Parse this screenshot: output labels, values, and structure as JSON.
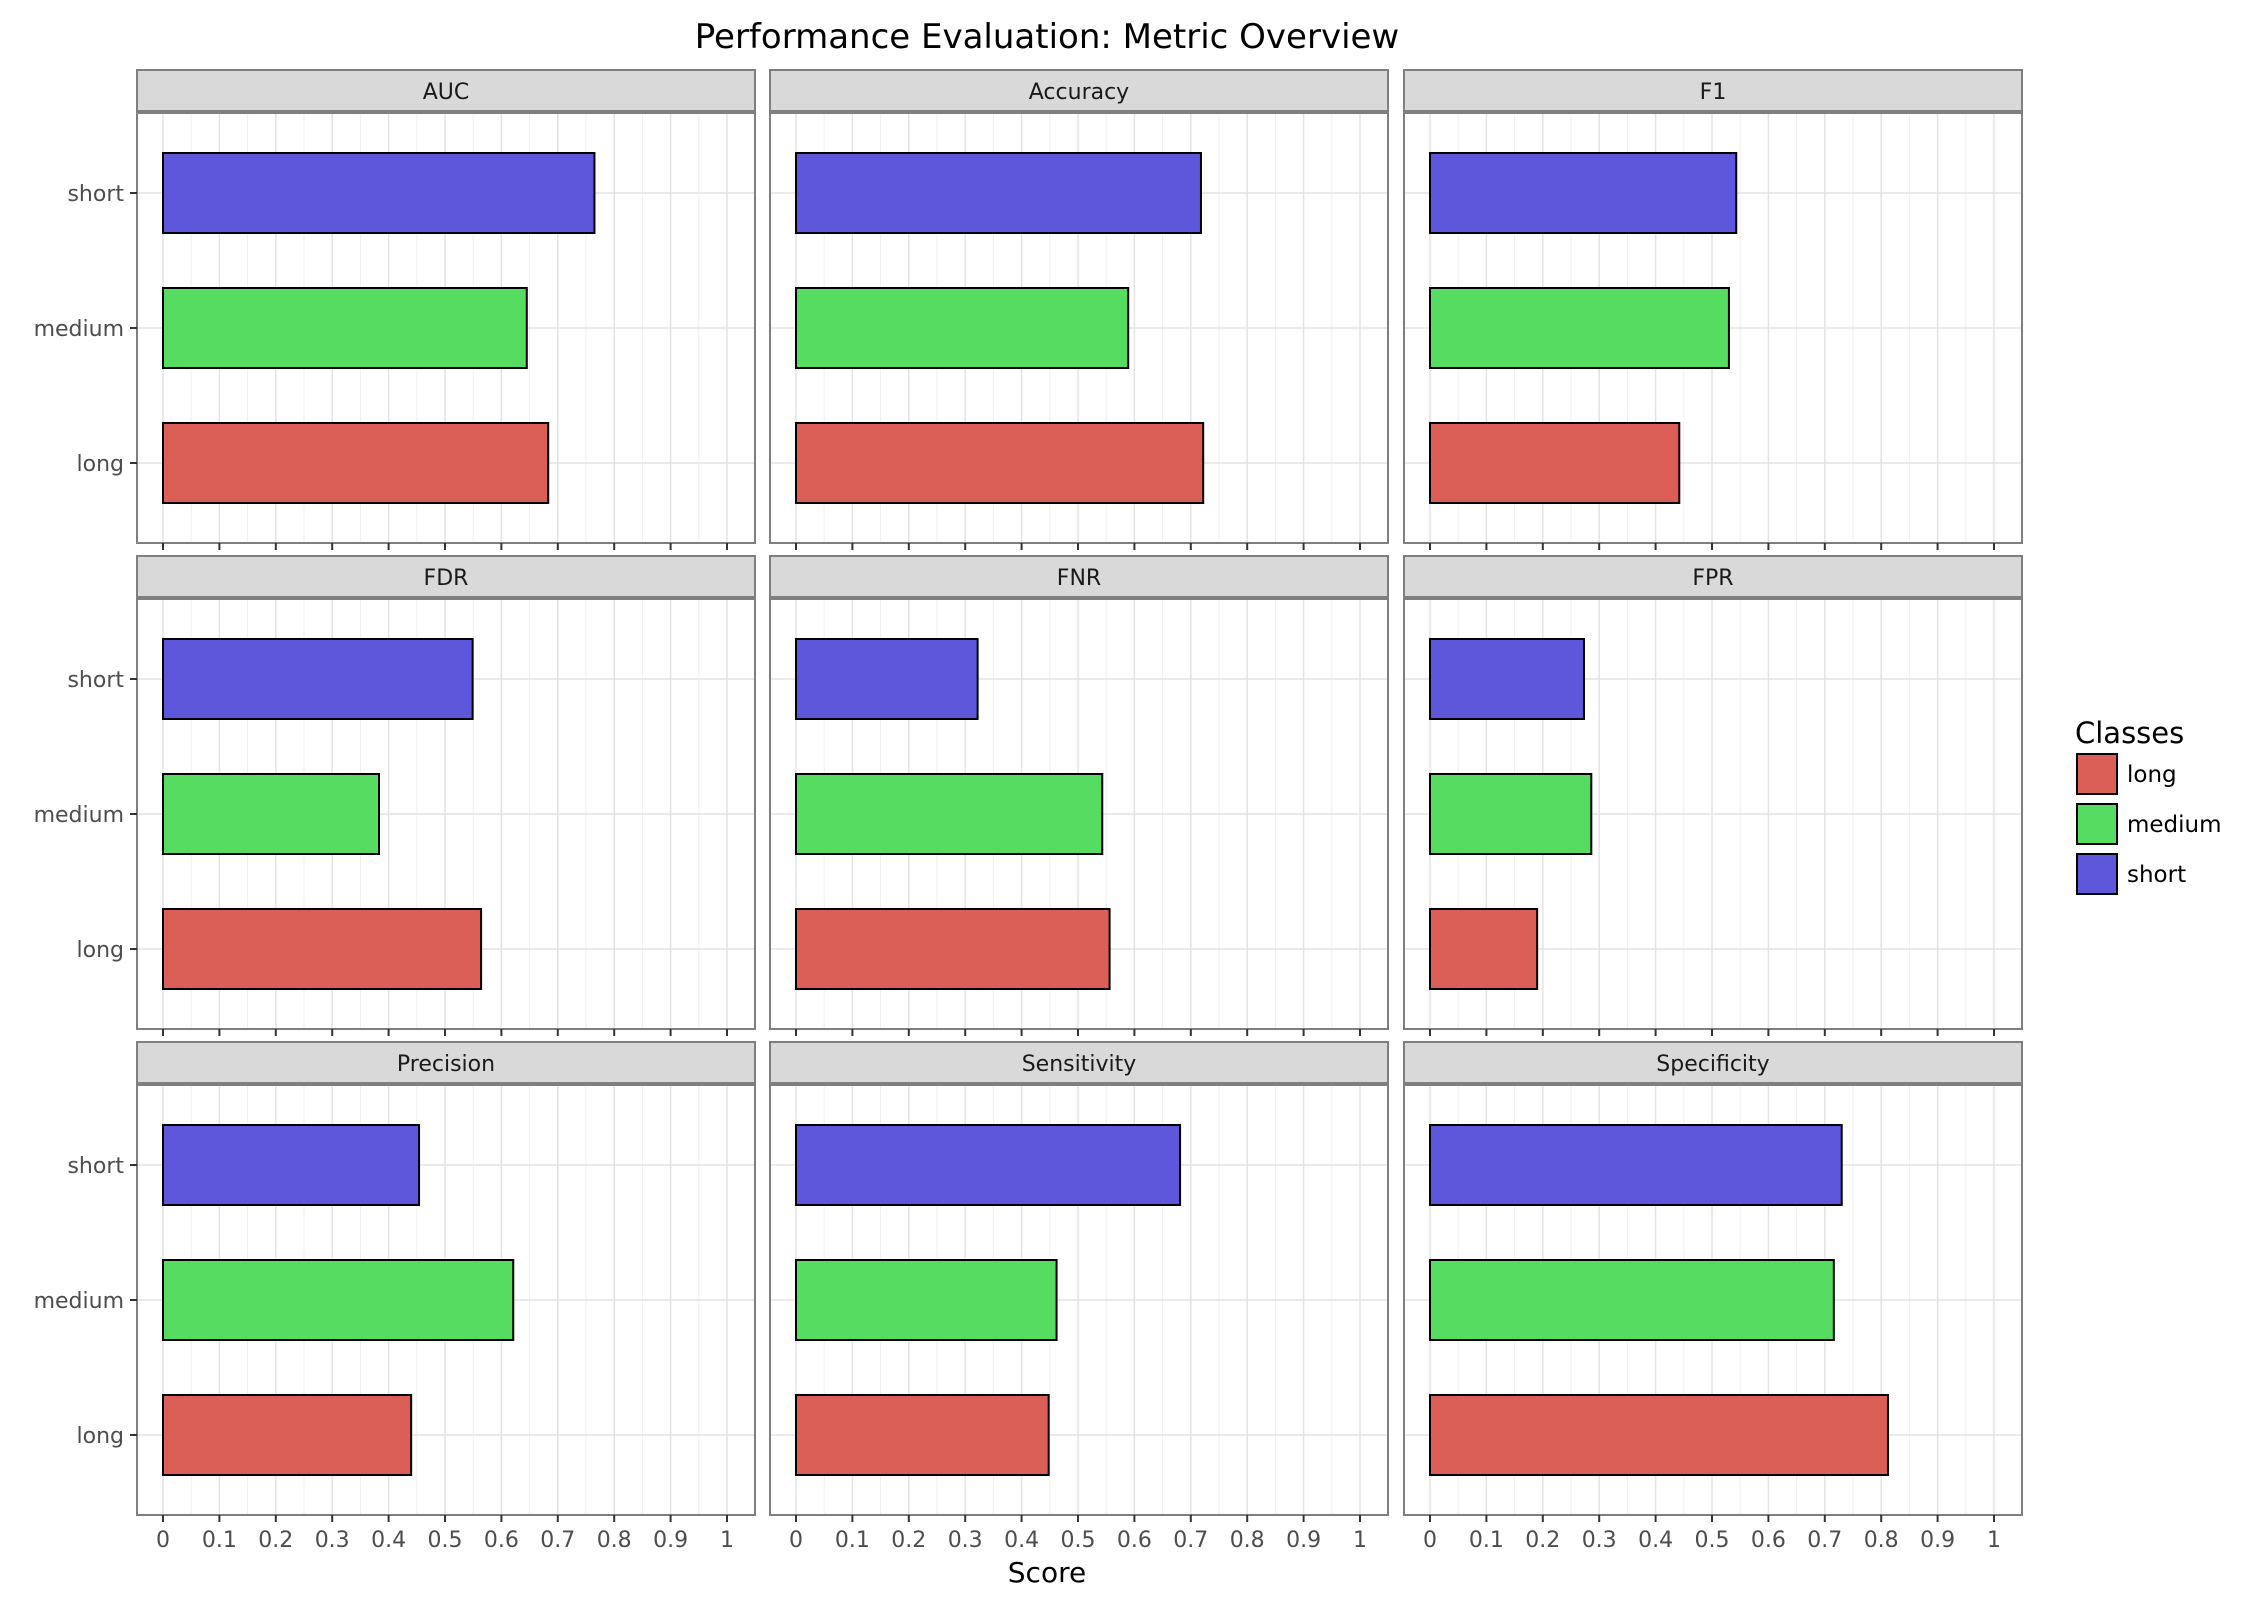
{
  "chart_data": {
    "type": "bar",
    "orientation": "horizontal",
    "title": "Performance Evaluation: Metric Overview",
    "xlabel": "Score",
    "ylabel": "",
    "xlim": [
      0,
      1
    ],
    "x_ticks": [
      "0",
      "0.1",
      "0.2",
      "0.3",
      "0.4",
      "0.5",
      "0.6",
      "0.7",
      "0.8",
      "0.9",
      "1"
    ],
    "categories": [
      "short",
      "medium",
      "long"
    ],
    "grid": true,
    "legend": {
      "title": "Classes",
      "position": "right",
      "entries": [
        "long",
        "medium",
        "short"
      ]
    },
    "colors": {
      "long": "#dc5f57",
      "medium": "#57dc62",
      "short": "#5e57dc"
    },
    "panels": [
      {
        "metric": "AUC",
        "values": {
          "short": 0.765,
          "medium": 0.645,
          "long": 0.683
        }
      },
      {
        "metric": "Accuracy",
        "values": {
          "short": 0.718,
          "medium": 0.589,
          "long": 0.722
        }
      },
      {
        "metric": "F1",
        "values": {
          "short": 0.543,
          "medium": 0.53,
          "long": 0.442
        }
      },
      {
        "metric": "FDR",
        "values": {
          "short": 0.549,
          "medium": 0.383,
          "long": 0.564
        }
      },
      {
        "metric": "FNR",
        "values": {
          "short": 0.322,
          "medium": 0.543,
          "long": 0.556
        }
      },
      {
        "metric": "FPR",
        "values": {
          "short": 0.273,
          "medium": 0.286,
          "long": 0.19
        }
      },
      {
        "metric": "Precision",
        "values": {
          "short": 0.454,
          "medium": 0.621,
          "long": 0.44
        }
      },
      {
        "metric": "Sensitivity",
        "values": {
          "short": 0.681,
          "medium": 0.462,
          "long": 0.448
        }
      },
      {
        "metric": "Specificity",
        "values": {
          "short": 0.73,
          "medium": 0.716,
          "long": 0.812
        }
      }
    ]
  }
}
